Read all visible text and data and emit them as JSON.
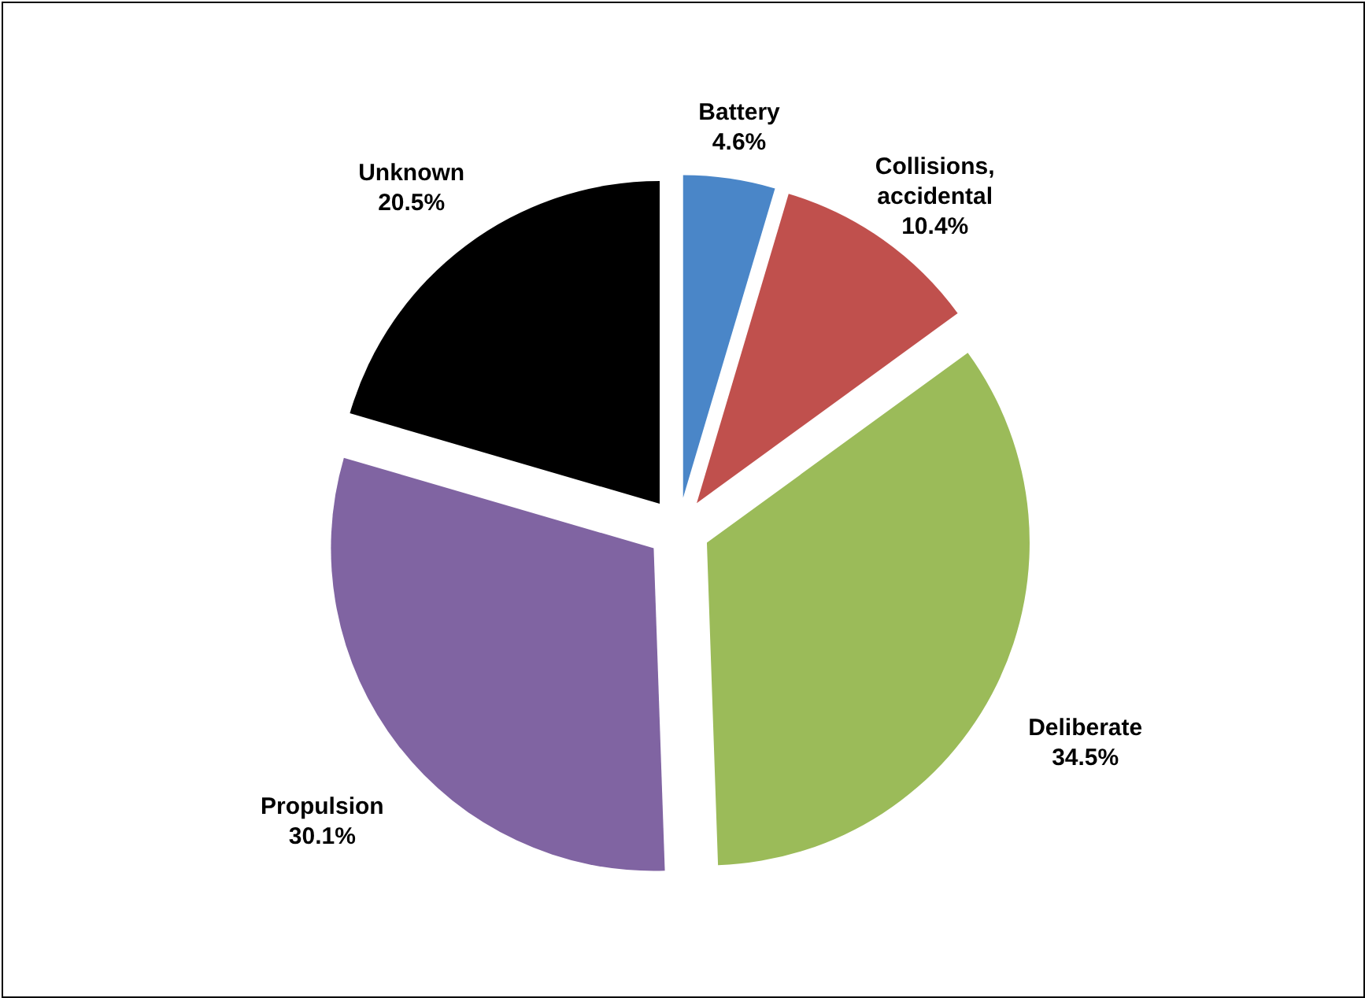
{
  "chart_data": {
    "type": "pie",
    "categories": [
      "Battery",
      "Collisions, accidental",
      "Deliberate",
      "Propulsion",
      "Unknown"
    ],
    "values": [
      4.6,
      10.4,
      34.5,
      30.1,
      20.5
    ],
    "value_labels": [
      "4.6%",
      "10.4%",
      "34.5%",
      "30.1%",
      "20.5%"
    ],
    "colors": [
      "#4a86c8",
      "#c0504d",
      "#9bbb59",
      "#8064a2",
      "#000000"
    ]
  }
}
